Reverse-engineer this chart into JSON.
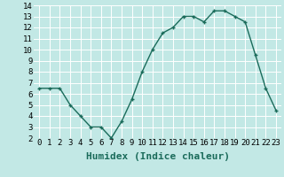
{
  "x": [
    0,
    1,
    2,
    3,
    4,
    5,
    6,
    7,
    8,
    9,
    10,
    11,
    12,
    13,
    14,
    15,
    16,
    17,
    18,
    19,
    20,
    21,
    22,
    23
  ],
  "y": [
    6.5,
    6.5,
    6.5,
    5.0,
    4.0,
    3.0,
    3.0,
    2.0,
    3.5,
    5.5,
    8.0,
    10.0,
    11.5,
    12.0,
    13.0,
    13.0,
    12.5,
    13.5,
    13.5,
    13.0,
    12.5,
    9.5,
    6.5,
    4.5
  ],
  "line_color": "#1a6b5a",
  "marker": "+",
  "bg_color": "#c2e8e5",
  "grid_color": "#ffffff",
  "xlabel": "Humidex (Indice chaleur)",
  "xlim": [
    -0.5,
    23.5
  ],
  "ylim": [
    2,
    14
  ],
  "yticks": [
    2,
    3,
    4,
    5,
    6,
    7,
    8,
    9,
    10,
    11,
    12,
    13,
    14
  ],
  "xticks": [
    0,
    1,
    2,
    3,
    4,
    5,
    6,
    7,
    8,
    9,
    10,
    11,
    12,
    13,
    14,
    15,
    16,
    17,
    18,
    19,
    20,
    21,
    22,
    23
  ],
  "tick_label_fontsize": 6.5,
  "xlabel_fontsize": 8,
  "linewidth": 1.0,
  "markersize": 3.5,
  "marker_ew": 1.0
}
